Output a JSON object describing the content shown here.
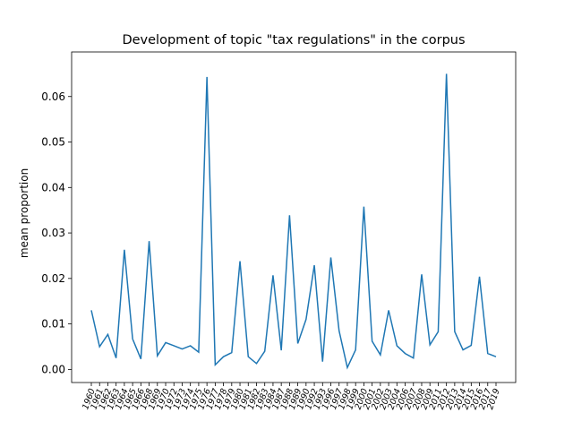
{
  "chart_data": {
    "type": "line",
    "title": "Development of topic \"tax regulations\" in the corpus",
    "y_label": "mean proportion",
    "categories": [
      "1960",
      "1961",
      "1962",
      "1963",
      "1964",
      "1965",
      "1966",
      "1968",
      "1969",
      "1970",
      "1972",
      "1973",
      "1974",
      "1975",
      "1976",
      "1977",
      "1978",
      "1979",
      "1980",
      "1981",
      "1982",
      "1983",
      "1984",
      "1987",
      "1988",
      "1989",
      "1990",
      "1992",
      "1993",
      "1996",
      "1997",
      "1998",
      "1999",
      "2000",
      "2001",
      "2002",
      "2003",
      "2004",
      "2006",
      "2007",
      "2008",
      "2009",
      "2011",
      "2012",
      "2013",
      "2014",
      "2015",
      "2016",
      "2017",
      "2019"
    ],
    "series": [
      {
        "name": "tax regulations",
        "color": "#1f77b4",
        "values": [
          0.013,
          0.005,
          0.0077,
          0.0025,
          0.0263,
          0.0067,
          0.0023,
          0.0282,
          0.003,
          0.0059,
          0.0052,
          0.0045,
          0.0052,
          0.0038,
          0.0643,
          0.001,
          0.0028,
          0.0037,
          0.0238,
          0.0028,
          0.0013,
          0.004,
          0.0207,
          0.0042,
          0.0339,
          0.0057,
          0.011,
          0.0229,
          0.0017,
          0.0246,
          0.0085,
          0.0004,
          0.0043,
          0.0358,
          0.0062,
          0.0032,
          0.013,
          0.0052,
          0.0035,
          0.0025,
          0.0209,
          0.0054,
          0.0083,
          0.065,
          0.0083,
          0.0043,
          0.0053,
          0.0204,
          0.0035,
          0.0028
        ]
      }
    ],
    "ylim": [
      -0.00288,
      0.0698
    ],
    "yticks": [
      {
        "value": 0,
        "label": "0.00"
      },
      {
        "value": 0.01,
        "label": "0.01"
      },
      {
        "value": 0.02,
        "label": "0.02"
      },
      {
        "value": 0.03,
        "label": "0.03"
      },
      {
        "value": 0.04,
        "label": "0.04"
      },
      {
        "value": 0.05,
        "label": "0.05"
      },
      {
        "value": 0.06,
        "label": "0.06"
      }
    ]
  }
}
